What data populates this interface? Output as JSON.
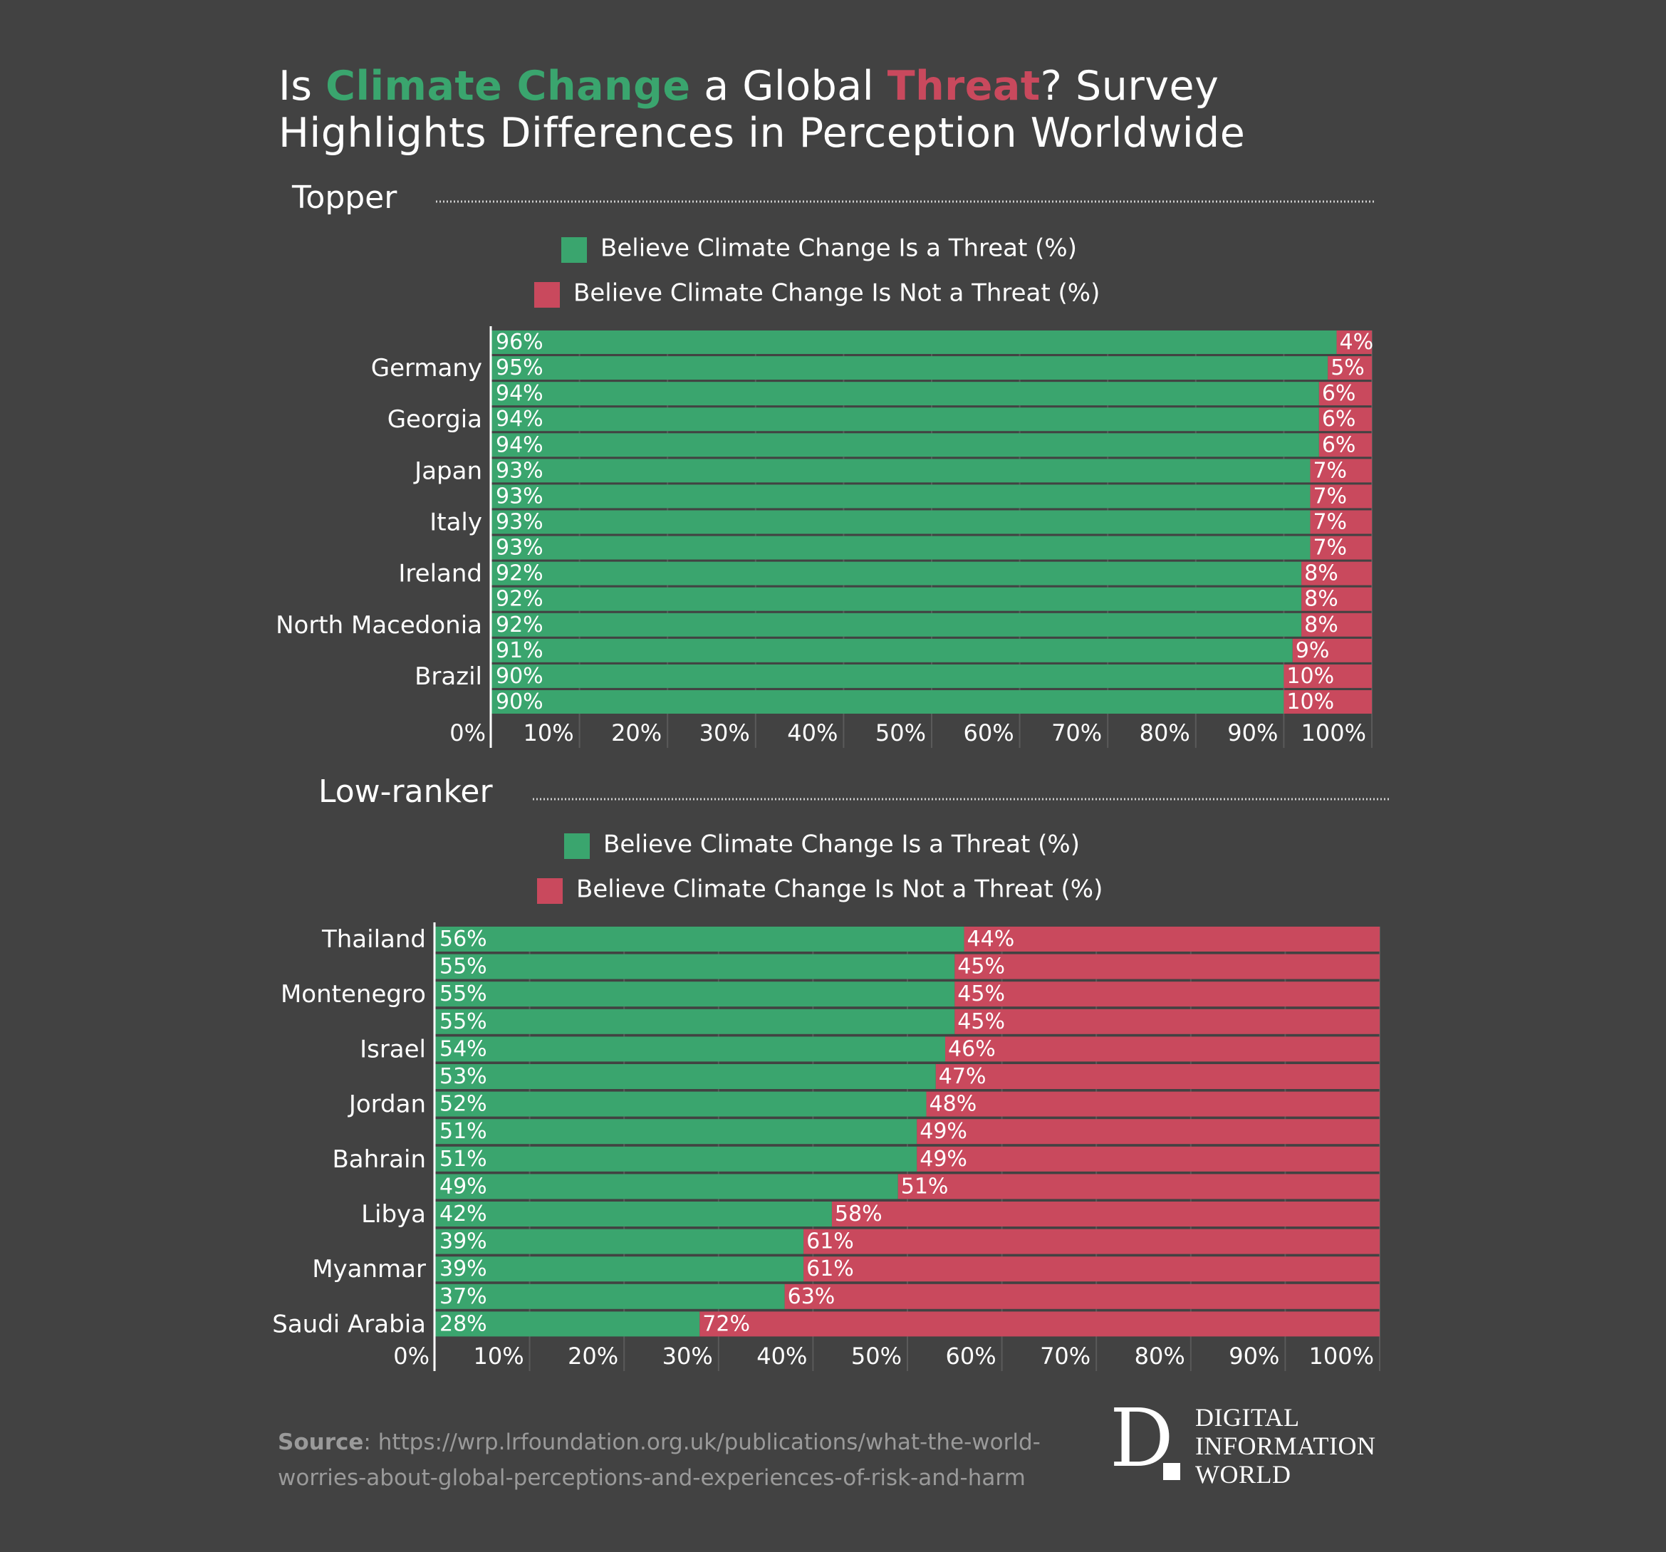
{
  "title": {
    "part1": "Is ",
    "highlight1": "Climate Change",
    "part2": " a Global ",
    "highlight2": "Threat",
    "part3": "? Survey Highlights Differences in Perception Worldwide"
  },
  "colors": {
    "background": "#424242",
    "threat": "#3aa56e",
    "not_threat": "#c9495d"
  },
  "chart_data": [
    {
      "type": "bar",
      "orientation": "horizontal",
      "stacked": true,
      "section_title": "Topper",
      "categories": [
        "",
        "Germany",
        "",
        "Georgia",
        "",
        "Japan",
        "",
        "Italy",
        "",
        "Ireland",
        "",
        "North Macedonia",
        "",
        "Brazil",
        ""
      ],
      "series": [
        {
          "name": "Believe Climate Change Is a Threat (%)",
          "color": "#3aa56e",
          "values": [
            96,
            95,
            94,
            94,
            94,
            93,
            93,
            93,
            93,
            92,
            92,
            92,
            91,
            90,
            90
          ]
        },
        {
          "name": "Believe Climate Change Is Not a Threat (%)",
          "color": "#c9495d",
          "values": [
            4,
            5,
            6,
            6,
            6,
            7,
            7,
            7,
            7,
            8,
            8,
            8,
            9,
            10,
            10
          ]
        }
      ],
      "xticks": [
        "0%",
        "10%",
        "20%",
        "30%",
        "40%",
        "50%",
        "60%",
        "70%",
        "80%",
        "90%",
        "100%"
      ],
      "xlim": [
        0,
        100
      ],
      "legend": "top-center",
      "grid": true
    },
    {
      "type": "bar",
      "orientation": "horizontal",
      "stacked": true,
      "section_title": "Low-ranker",
      "categories": [
        "Thailand",
        "",
        "Montenegro",
        "",
        "Israel",
        "",
        "Jordan",
        "",
        "Bahrain",
        "",
        "Libya",
        "",
        "Myanmar",
        "",
        "Saudi Arabia"
      ],
      "series": [
        {
          "name": "Believe Climate Change Is a Threat (%)",
          "color": "#3aa56e",
          "values": [
            56,
            55,
            55,
            55,
            54,
            53,
            52,
            51,
            51,
            49,
            42,
            39,
            39,
            37,
            28
          ]
        },
        {
          "name": "Believe Climate Change Is Not a Threat (%)",
          "color": "#c9495d",
          "values": [
            44,
            45,
            45,
            45,
            46,
            47,
            48,
            49,
            49,
            51,
            58,
            61,
            61,
            63,
            72
          ]
        }
      ],
      "xticks": [
        "0%",
        "10%",
        "20%",
        "30%",
        "40%",
        "50%",
        "60%",
        "70%",
        "80%",
        "90%",
        "100%"
      ],
      "xlim": [
        0,
        100
      ],
      "legend": "top-center",
      "grid": true
    }
  ],
  "source": {
    "label": "Source",
    "text": ": https://wrp.lrfoundation.org.uk/publications/what-the-world-worries-about-global-perceptions-and-experiences-of-risk-and-harm"
  },
  "logo": {
    "letter": "D",
    "line1": "DIGITAL",
    "line2": "INFORMATION",
    "line3": "WORLD"
  }
}
